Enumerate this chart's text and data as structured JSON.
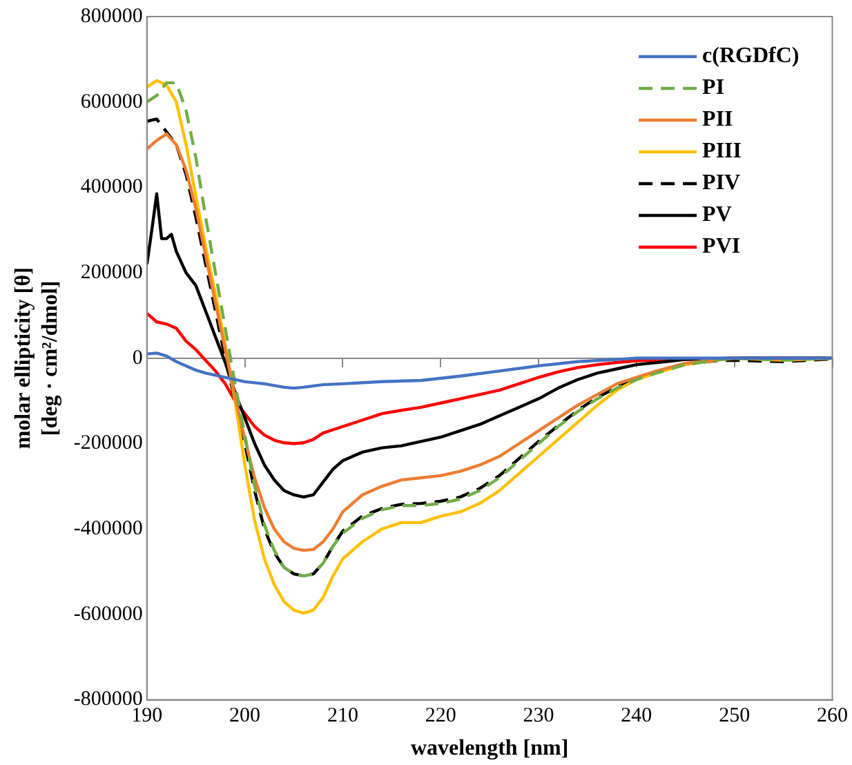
{
  "chart_data": {
    "type": "line",
    "xlabel": "wavelength [nm]",
    "ylabel": "molar ellipticity [θ]\n[deg · cm²/dmol]",
    "xlim": [
      190,
      260
    ],
    "xticks": [
      190,
      200,
      210,
      220,
      230,
      240,
      250,
      260
    ],
    "ylim": [
      -800000,
      800000
    ],
    "yticks": [
      -800000,
      -600000,
      -400000,
      -200000,
      0,
      200000,
      400000,
      600000,
      800000
    ],
    "legend": "top right",
    "marker": "none",
    "series": [
      {
        "name": "c(RGDfC)",
        "color": "#4472c4",
        "line_style": "solid",
        "x": [
          190,
          191,
          192,
          193,
          194,
          195,
          196,
          198,
          200,
          202,
          204,
          205,
          206,
          208,
          210,
          214,
          218,
          222,
          226,
          230,
          234,
          238,
          240,
          250,
          260
        ],
        "values": [
          10000,
          12000,
          5000,
          -8000,
          -18000,
          -28000,
          -35000,
          -45000,
          -55000,
          -60000,
          -68000,
          -70000,
          -68000,
          -62000,
          -60000,
          -55000,
          -52000,
          -42000,
          -30000,
          -18000,
          -8000,
          -3000,
          0,
          0,
          0
        ]
      },
      {
        "name": "PI",
        "color": "#70ad47",
        "line_style": "dashed",
        "x": [
          190,
          191,
          192,
          193,
          194,
          195,
          196,
          197,
          198,
          199,
          200,
          201,
          202,
          203,
          204,
          205,
          206,
          207,
          208,
          209,
          210,
          212,
          214,
          216,
          218,
          220,
          222,
          224,
          226,
          228,
          230,
          232,
          234,
          236,
          238,
          240,
          242,
          245,
          248,
          250,
          255,
          260
        ],
        "values": [
          600000,
          615000,
          645000,
          645000,
          580000,
          470000,
          330000,
          200000,
          70000,
          -60000,
          -180000,
          -300000,
          -390000,
          -450000,
          -490000,
          -505000,
          -510000,
          -505000,
          -480000,
          -440000,
          -410000,
          -375000,
          -355000,
          -345000,
          -345000,
          -340000,
          -330000,
          -310000,
          -280000,
          -240000,
          -200000,
          -160000,
          -125000,
          -95000,
          -70000,
          -50000,
          -35000,
          -15000,
          -5000,
          0,
          -5000,
          0
        ]
      },
      {
        "name": "PII",
        "color": "#ed7d31",
        "line_style": "solid",
        "x": [
          190,
          191,
          192,
          193,
          194,
          195,
          196,
          197,
          198,
          199,
          200,
          201,
          202,
          203,
          204,
          205,
          206,
          207,
          208,
          209,
          210,
          212,
          214,
          216,
          218,
          220,
          222,
          224,
          226,
          228,
          230,
          232,
          234,
          236,
          238,
          240,
          242,
          245,
          248,
          250,
          255,
          260
        ],
        "values": [
          490000,
          510000,
          525000,
          500000,
          440000,
          350000,
          240000,
          130000,
          20000,
          -90000,
          -190000,
          -280000,
          -350000,
          -400000,
          -430000,
          -445000,
          -450000,
          -448000,
          -430000,
          -400000,
          -360000,
          -320000,
          -300000,
          -285000,
          -280000,
          -275000,
          -265000,
          -250000,
          -230000,
          -200000,
          -170000,
          -140000,
          -110000,
          -85000,
          -60000,
          -45000,
          -30000,
          -12000,
          -4000,
          0,
          -3000,
          0
        ]
      },
      {
        "name": "PIII",
        "color": "#ffc000",
        "line_style": "solid",
        "x": [
          190,
          191,
          192,
          193,
          194,
          195,
          196,
          197,
          198,
          199,
          200,
          201,
          202,
          203,
          204,
          205,
          206,
          207,
          208,
          209,
          210,
          212,
          214,
          216,
          218,
          220,
          222,
          224,
          226,
          228,
          230,
          232,
          234,
          236,
          238,
          240,
          242,
          245,
          248,
          250,
          255,
          260
        ],
        "values": [
          635000,
          650000,
          640000,
          600000,
          500000,
          380000,
          260000,
          150000,
          30000,
          -100000,
          -250000,
          -380000,
          -470000,
          -530000,
          -570000,
          -590000,
          -597000,
          -590000,
          -560000,
          -510000,
          -470000,
          -430000,
          -400000,
          -385000,
          -385000,
          -370000,
          -360000,
          -340000,
          -310000,
          -270000,
          -230000,
          -190000,
          -150000,
          -110000,
          -75000,
          -50000,
          -35000,
          -15000,
          -5000,
          0,
          -5000,
          0
        ]
      },
      {
        "name": "PIV",
        "color": "#000000",
        "line_style": "dashed",
        "x": [
          190,
          191,
          192,
          193,
          194,
          195,
          196,
          197,
          198,
          199,
          200,
          201,
          202,
          203,
          204,
          205,
          206,
          207,
          208,
          209,
          210,
          212,
          214,
          216,
          218,
          220,
          222,
          224,
          226,
          228,
          230,
          232,
          234,
          236,
          238,
          240,
          242,
          245,
          248,
          250,
          255,
          260
        ],
        "values": [
          555000,
          560000,
          530000,
          500000,
          430000,
          330000,
          220000,
          110000,
          0,
          -100000,
          -200000,
          -310000,
          -400000,
          -455000,
          -490000,
          -505000,
          -510000,
          -505000,
          -480000,
          -440000,
          -405000,
          -370000,
          -352000,
          -342000,
          -340000,
          -335000,
          -325000,
          -305000,
          -275000,
          -235000,
          -195000,
          -158000,
          -122000,
          -92000,
          -68000,
          -48000,
          -33000,
          -14000,
          -6000,
          -5000,
          -8000,
          -2000
        ]
      },
      {
        "name": "PV",
        "color": "#000000",
        "line_style": "solid",
        "x": [
          190,
          190.5,
          191,
          191.5,
          192,
          192.5,
          193,
          194,
          195,
          196,
          197,
          198,
          199,
          200,
          201,
          202,
          203,
          204,
          205,
          206,
          207,
          208,
          209,
          210,
          212,
          214,
          216,
          218,
          220,
          222,
          224,
          226,
          228,
          230,
          232,
          234,
          236,
          238,
          240,
          243,
          245,
          250,
          255,
          260
        ],
        "values": [
          220000,
          300000,
          385000,
          280000,
          280000,
          290000,
          250000,
          200000,
          170000,
          110000,
          50000,
          -10000,
          -80000,
          -140000,
          -200000,
          -250000,
          -285000,
          -310000,
          -320000,
          -325000,
          -320000,
          -290000,
          -260000,
          -240000,
          -220000,
          -210000,
          -205000,
          -195000,
          -185000,
          -170000,
          -155000,
          -135000,
          -115000,
          -95000,
          -70000,
          -50000,
          -35000,
          -25000,
          -15000,
          -8000,
          -3000,
          0,
          0,
          0
        ]
      },
      {
        "name": "PVI",
        "color": "#ff0000",
        "line_style": "solid",
        "x": [
          190,
          191,
          192,
          193,
          194,
          195,
          196,
          197,
          198,
          199,
          200,
          201,
          202,
          203,
          204,
          205,
          206,
          207,
          208,
          210,
          212,
          214,
          216,
          218,
          220,
          222,
          224,
          226,
          228,
          230,
          232,
          234,
          236,
          238,
          240,
          245,
          250,
          260
        ],
        "values": [
          105000,
          85000,
          80000,
          70000,
          40000,
          20000,
          -5000,
          -30000,
          -60000,
          -100000,
          -130000,
          -160000,
          -180000,
          -192000,
          -198000,
          -200000,
          -198000,
          -190000,
          -175000,
          -160000,
          -145000,
          -130000,
          -122000,
          -115000,
          -105000,
          -95000,
          -85000,
          -75000,
          -60000,
          -45000,
          -32000,
          -22000,
          -15000,
          -10000,
          -6000,
          -2000,
          0,
          0
        ]
      }
    ]
  }
}
